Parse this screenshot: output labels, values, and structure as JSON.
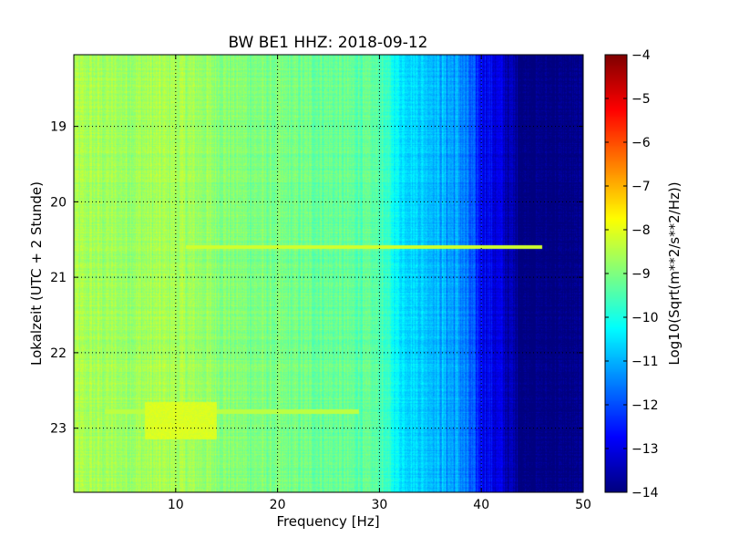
{
  "chart_data": {
    "type": "heatmap",
    "title": "BW BE1 HHZ: 2018-09-12",
    "xlabel": "Frequency [Hz]",
    "ylabel": "Lokalzeit (UTC + 2 Stunde)",
    "xlim": [
      0,
      50
    ],
    "ylim": [
      18.05,
      23.85
    ],
    "y_inverted": true,
    "grid": true,
    "x_ticks": [
      10,
      20,
      30,
      40,
      50
    ],
    "x_tick_labels": [
      "10",
      "20",
      "30",
      "40",
      "50"
    ],
    "y_ticks": [
      19,
      20,
      21,
      22,
      23
    ],
    "y_tick_labels": [
      "19",
      "20",
      "21",
      "22",
      "23"
    ],
    "colorbar": {
      "label": "Log10(Sqrt(m**2/s**2/Hz))",
      "min": -14,
      "max": -4,
      "ticks": [
        -4,
        -5,
        -6,
        -7,
        -8,
        -9,
        -10,
        -11,
        -12,
        -13,
        -14
      ],
      "tick_labels": [
        "−4",
        "−5",
        "−6",
        "−7",
        "−8",
        "−9",
        "−10",
        "−11",
        "−12",
        "−13",
        "−14"
      ],
      "colormap": "jet"
    },
    "spectrum_profile": {
      "frequency_hz": [
        0,
        5,
        10,
        15,
        20,
        25,
        30,
        32,
        35,
        38,
        40,
        42,
        44,
        50
      ],
      "log_psd": [
        -8.6,
        -8.7,
        -8.6,
        -8.9,
        -9.1,
        -9.2,
        -9.4,
        -10.4,
        -10.8,
        -11.3,
        -12.6,
        -13.2,
        -14,
        -14
      ]
    },
    "features": [
      {
        "type": "horizontal_line",
        "time_hour": 20.6,
        "freq_from_hz": 11,
        "freq_to_hz": 46,
        "log_psd": -8.2
      },
      {
        "type": "horizontal_line",
        "time_hour": 22.78,
        "freq_from_hz": 3,
        "freq_to_hz": 28,
        "log_psd": -8.4
      },
      {
        "type": "time_band",
        "time_from_hour": 22.65,
        "time_to_hour": 23.15,
        "freq_from_hz": 7,
        "freq_to_hz": 14,
        "log_psd": -8.1
      }
    ]
  }
}
